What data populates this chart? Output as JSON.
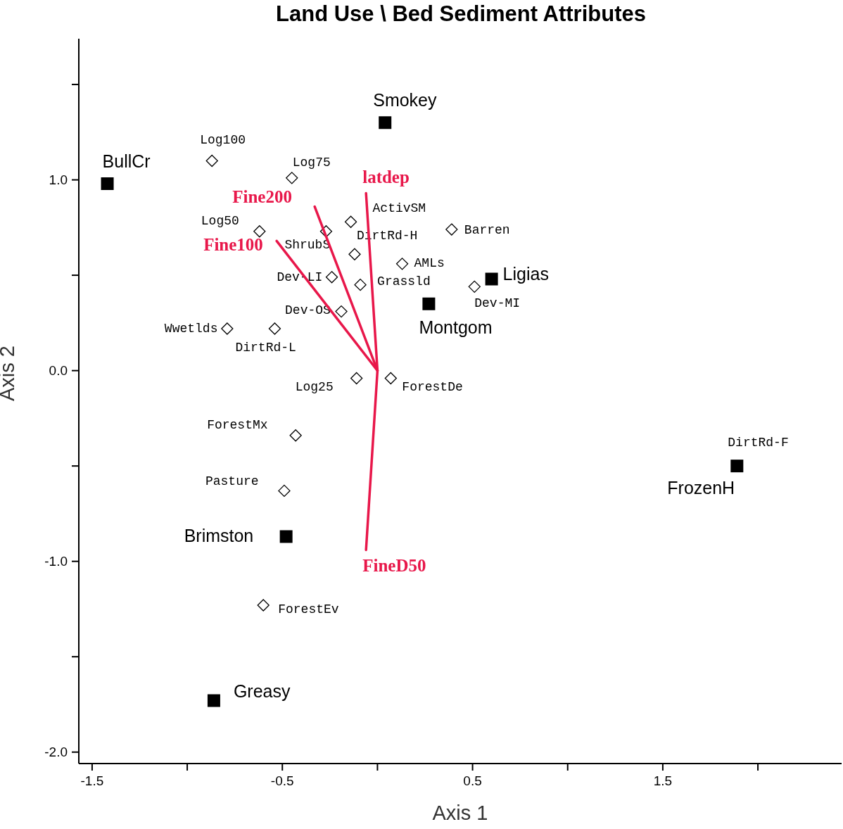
{
  "chart_data": {
    "type": "scatter",
    "title": "Land Use \\ Bed Sediment Attributes",
    "xlabel": "Axis 1",
    "ylabel": "Axis 2",
    "xlim": [
      -1.57,
      2.44
    ],
    "ylim": [
      -2.06,
      1.74
    ],
    "xticks": [
      -1.5,
      {
        "value": -1,
        "label": null
      },
      -0.5,
      {
        "value": 0,
        "label": null
      },
      0.5,
      {
        "value": 1,
        "label": null
      },
      1.5,
      {
        "value": 2,
        "label": null
      }
    ],
    "yticks": [
      {
        "value": -2,
        "label": "-2.0"
      },
      {
        "value": -1.5,
        "label": null
      },
      {
        "value": -1,
        "label": "-1.0"
      },
      {
        "value": -0.5,
        "label": null
      },
      {
        "value": 0,
        "label": "0.0"
      },
      {
        "value": 0.5,
        "label": null
      },
      {
        "value": 1,
        "label": "1.0"
      },
      {
        "value": 1.5,
        "label": null
      }
    ],
    "grid": false,
    "legend": false,
    "annotations": [
      {
        "text": "DirtRd-F",
        "x": 1.89,
        "y": -0.5
      }
    ],
    "series": [
      {
        "marker": "diamond",
        "color": "#000000",
        "x": [
          -0.87,
          -0.45,
          -0.62,
          -0.27,
          -0.14,
          -0.12,
          0.39,
          0.13,
          -0.24,
          -0.09,
          0.51,
          -0.19,
          -0.79,
          -0.54,
          -0.11,
          0.07,
          -0.43,
          -0.49,
          -0.6
        ],
        "values": [
          1.1,
          1.01,
          0.73,
          0.73,
          0.78,
          0.61,
          0.74,
          0.56,
          0.49,
          0.45,
          0.44,
          0.31,
          0.22,
          0.22,
          -0.04,
          -0.04,
          -0.34,
          -0.63,
          -1.23
        ],
        "value_labels": [
          "Log100",
          "Log75",
          "Log50",
          "ShrubS",
          "ActivSM",
          "DirtRd-H",
          "Barren",
          "AMLs",
          "Dev-LI",
          "Grassld",
          "Dev-MI",
          "Dev-OS",
          "Wwetlds",
          "DirtRd-L",
          "Log25",
          "ForestDe",
          "ForestMx",
          "Pasture",
          "ForestEv"
        ]
      },
      {
        "marker": "square",
        "color": "#000000",
        "x": [
          -1.42,
          0.04,
          0.6,
          0.27,
          1.89,
          -0.48,
          -0.86
        ],
        "values": [
          0.98,
          1.3,
          0.48,
          0.35,
          -0.5,
          -0.87,
          -1.73
        ],
        "value_labels": [
          "BullCr",
          "Smokey",
          "Ligias",
          "Montgom",
          "FrozenH",
          "Brimston",
          "Greasy"
        ]
      },
      {
        "type": "line",
        "marker": "none",
        "color": "#e8174a",
        "x": [
          -0.06,
          0,
          -0.06
        ],
        "values": [
          0.93,
          0,
          -0.94
        ],
        "value_labels": [
          "latdep",
          null,
          "FineD50"
        ]
      },
      {
        "type": "line",
        "marker": "none",
        "color": "#e8174a",
        "x": [
          0,
          -0.33
        ],
        "values": [
          0,
          0.86
        ],
        "value_labels": [
          null,
          "Fine200"
        ]
      },
      {
        "type": "line",
        "marker": "none",
        "color": "#e8174a",
        "x": [
          0,
          -0.53
        ],
        "values": [
          0,
          0.68
        ],
        "value_labels": [
          null,
          "Fine100"
        ]
      }
    ]
  }
}
